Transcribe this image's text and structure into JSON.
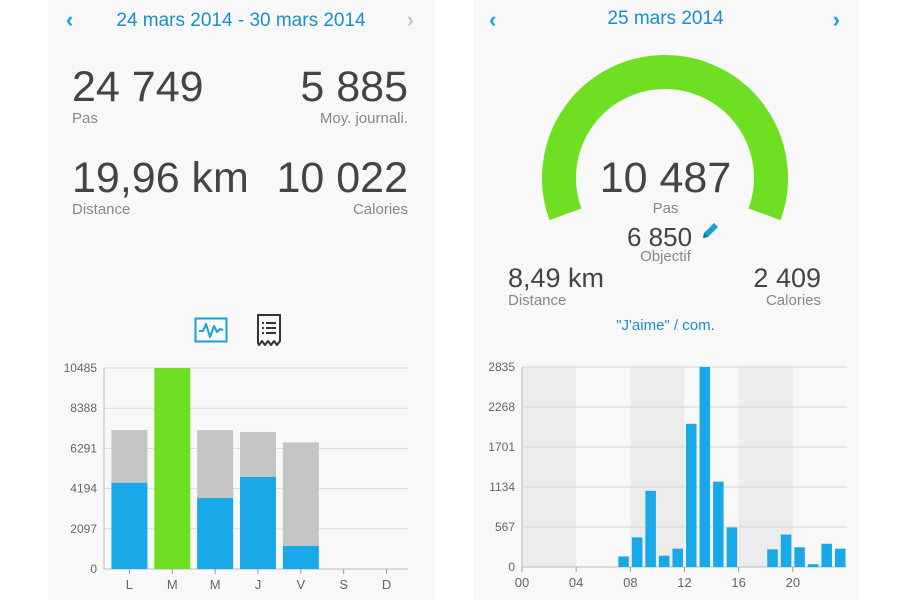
{
  "weekly": {
    "nav": {
      "prev_icon": "chevron-left-icon",
      "next_icon": "chevron-right-icon",
      "title": "24 mars 2014 - 30 mars 2014",
      "next_disabled": true
    },
    "stats": {
      "steps": {
        "value": "24 749",
        "label": "Pas"
      },
      "daily_avg": {
        "value": "5 885",
        "label": "Moy. journali."
      },
      "distance": {
        "value": "19,96 km",
        "label": "Distance"
      },
      "calories": {
        "value": "10 022",
        "label": "Calories"
      }
    },
    "view_toggle": {
      "chart_icon": "activity-chart-icon",
      "list_icon": "list-document-icon",
      "active": "chart",
      "accent": "#1a9fd8"
    },
    "colors": {
      "active": "#1aa9e8",
      "remaining": "#c4c4c4",
      "goal_met": "#6fe021"
    }
  },
  "daily": {
    "nav": {
      "prev_icon": "chevron-left-icon",
      "next_icon": "chevron-right-icon",
      "title": "25 mars 2014"
    },
    "gauge": {
      "steps_value": "10 487",
      "steps_label": "Pas",
      "goal_value": "6 850",
      "goal_label": "Objectif",
      "edit_icon": "pencil-icon",
      "progress": 1.0,
      "color": "#6fe021"
    },
    "stats": {
      "distance": {
        "value": "8,49 km",
        "label": "Distance"
      },
      "calories": {
        "value": "2 409",
        "label": "Calories"
      }
    },
    "likes_link": "\"J'aime\" / com."
  },
  "chart_data": [
    {
      "type": "bar",
      "stacked": true,
      "categories": [
        "L",
        "M",
        "M",
        "J",
        "V",
        "S",
        "D"
      ],
      "series": [
        {
          "values": [
            4500,
            10485,
            3700,
            4800,
            1200,
            0,
            0
          ]
        },
        {
          "values": [
            2750,
            0,
            3550,
            2350,
            5400,
            0,
            0
          ]
        }
      ],
      "yticks": [
        "0",
        "2097",
        "4194",
        "6291",
        "8388",
        "10485"
      ],
      "ylim": [
        0,
        10485
      ],
      "grid": true
    },
    {
      "type": "bar",
      "x": [
        0,
        1,
        2,
        3,
        4,
        5,
        6,
        7,
        8,
        9,
        10,
        11,
        12,
        13,
        14,
        15,
        16,
        17,
        18,
        19,
        20,
        21,
        22,
        23
      ],
      "values": [
        0,
        0,
        0,
        0,
        0,
        0,
        0,
        150,
        420,
        1080,
        160,
        260,
        2030,
        2835,
        1210,
        560,
        0,
        0,
        250,
        460,
        280,
        40,
        330,
        260
      ],
      "xticks": [
        "00",
        "04",
        "08",
        "12",
        "16",
        "20"
      ],
      "yticks": [
        "0",
        "567",
        "1134",
        "1701",
        "2268",
        "2835"
      ],
      "ylim": [
        0,
        2835
      ],
      "grid": true,
      "color": "#1aa9e8"
    }
  ]
}
